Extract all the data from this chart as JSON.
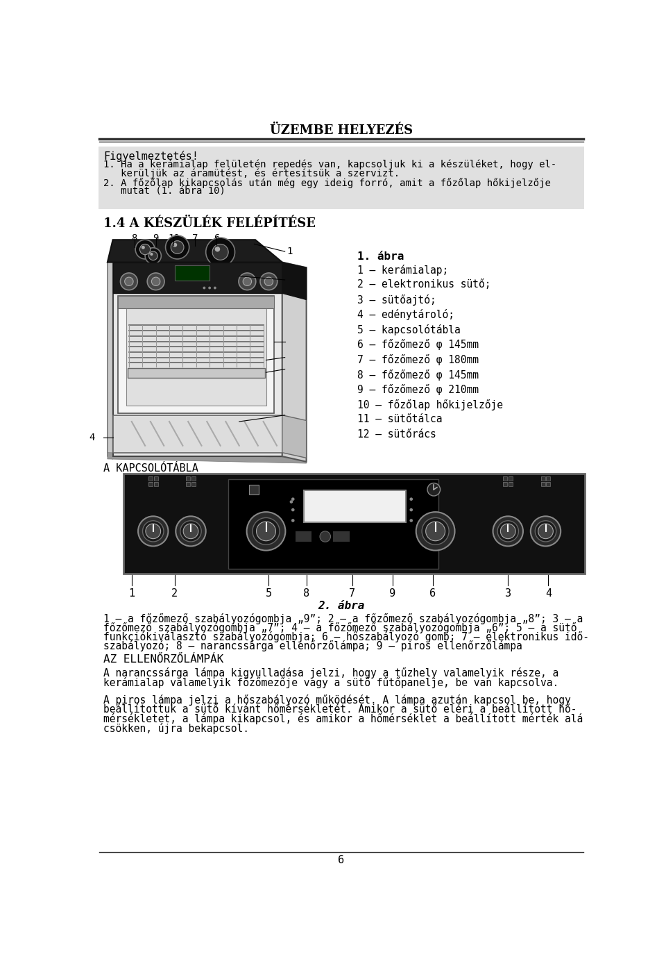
{
  "page_title": "ÜZEMBE HELYEZÉS",
  "section_header": "1.4 A KÉSZÜLÉK FELÉPÍTÉSE",
  "warning_label": "Figyelmeztetés!",
  "warning_lines": [
    "1. Ha a kerámialap felületén repedés van, kapcsoljuk ki a készüléket, hogy el-",
    "   kerüljük az áramütést, és értesítsük a szervizt.",
    "2. A főzőlap kikapcsolás után még egy ideig forró, amit a főzőlap hőkijelzője",
    "   mutat (1. ábra 10)"
  ],
  "abra1_title": "1. ábra",
  "abra1_items": [
    "1 – kerámialap;",
    "2 – elektronikus sütő;",
    "3 – sütőajtó;",
    "4 – edénytároló;",
    "5 – kapcsolótábla",
    "6 – főzőmező φ 145mm",
    "7 – főzőmező φ 180mm",
    "8 – főzőmező φ 145mm",
    "9 – főzőmező φ 210mm",
    "10 – főzőlap hőkijelzője",
    "11 – sütőtálca",
    "12 – sütőrács"
  ],
  "kapcsolotabla_label": "A KAPCSOLÓTÁBLA",
  "panel_numbers": [
    "1",
    "2",
    "5",
    "8",
    "7",
    "9",
    "6",
    "3",
    "4"
  ],
  "panel_number_x": [
    90,
    170,
    345,
    415,
    500,
    575,
    650,
    790,
    865
  ],
  "abra2_title": "2. ábra",
  "abra2_lines": [
    "1 – a főzőmező szabályozógombja „9”; 2 – a főzőmező szabályozógombja „8”; 3 – a",
    "főzőmező szabályozógombja „7”; 4 – a főzőmező szabályozógombja „6”; 5 – a sütő",
    "funkciókiválasztó szabályozógombja; 6 – hőszabályozó gomb; 7 – elektronikus idő-",
    "szabályozó; 8 – narancssárga ellenőrzőlámpa; 9 – piros ellenőrzőlámpa"
  ],
  "ellenorzo_title": "AZ ELLENŐRZŐLÁMPÁK",
  "ellenorzo_lines1": [
    "A narancssárga lámpa kigyulladása jelzi, hogy a tűzhely valamelyik része, a",
    "kerámialap valamelyik főzőmezője vagy a sütő fűtőpanelje, be van kapcsolva."
  ],
  "ellenorzo_lines2": [
    "A piros lámpa jelzi a hőszabályozó működését. A lámpa azután kapcsol be, hogy",
    "beállítottuk a sütő kívánt hőmérsékletét. Amikor a sütő eléri a beállított hő-",
    "mérsékletet, a lámpa kikapcsol, és amikor a hőmérséklet a beállított mérték alá",
    "csökken, újra bekapcsol."
  ],
  "page_number": "6",
  "bg_color": "#ffffff",
  "warning_bg": "#e0e0e0",
  "text_color": "#000000"
}
